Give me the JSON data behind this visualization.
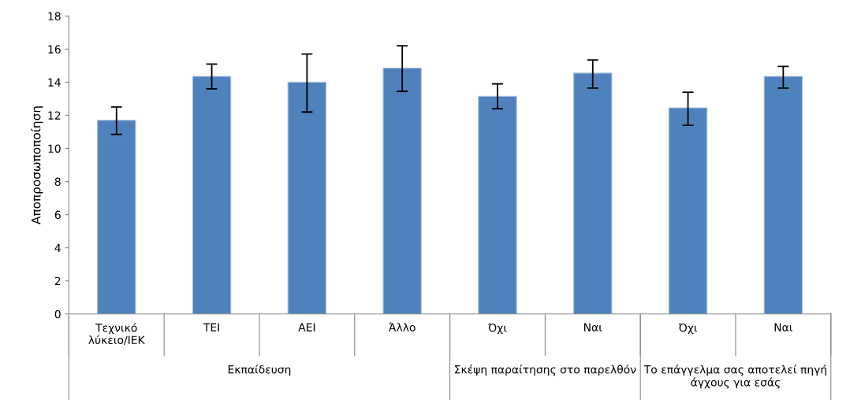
{
  "chart_data": {
    "type": "bar",
    "ylabel": "Αποπροσωποποίηση",
    "categories": [
      "Τεχνικό\nλύκειο/ΙΕΚ",
      "ΤΕΙ",
      "ΑΕΙ",
      "Άλλο",
      "Όχι",
      "Ναι",
      "Όχι",
      "Ναι"
    ],
    "values": [
      11.7,
      14.35,
      14.0,
      14.85,
      13.15,
      14.55,
      12.45,
      14.35
    ],
    "errors": [
      [
        10.85,
        12.5
      ],
      [
        13.6,
        15.1
      ],
      [
        12.2,
        15.7
      ],
      [
        13.45,
        16.2
      ],
      [
        12.4,
        13.9
      ],
      [
        13.65,
        15.35
      ],
      [
        11.4,
        13.4
      ],
      [
        13.65,
        14.95
      ]
    ],
    "color": "#4f81bd",
    "ylim": [
      0,
      18
    ],
    "yticks": [
      0,
      2,
      4,
      6,
      8,
      10,
      12,
      14,
      16,
      18
    ],
    "annotations": [
      "Εκπαίδευση",
      "Σκέψη παραίτησης στο παρελθόν",
      "Το επάγγελμα σας αποτελεί πηγή\nάγχους για εσάς"
    ]
  }
}
